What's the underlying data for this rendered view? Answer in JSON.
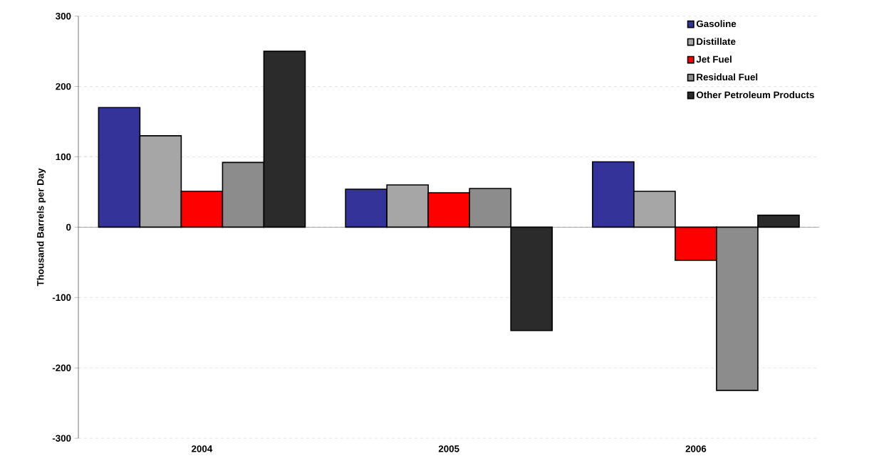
{
  "chart_data": {
    "type": "bar",
    "ylabel": "Thousand Barrels per Day",
    "categories": [
      "2004",
      "2005",
      "2006"
    ],
    "series": [
      {
        "name": "Gasoline",
        "color": "#333399",
        "values": [
          170,
          54,
          93
        ]
      },
      {
        "name": "Distillate",
        "color": "#a6a6a6",
        "values": [
          130,
          60,
          51
        ]
      },
      {
        "name": "Jet Fuel",
        "color": "#ff0000",
        "values": [
          51,
          49,
          -47
        ]
      },
      {
        "name": "Residual Fuel",
        "color": "#8c8c8c",
        "values": [
          92,
          55,
          -232
        ]
      },
      {
        "name": "Other Petroleum Products",
        "color": "#2b2b2b",
        "values": [
          250,
          -147,
          17
        ]
      }
    ],
    "ylim": [
      -300,
      300
    ],
    "yticks": [
      -300,
      -200,
      -100,
      0,
      100,
      200,
      300
    ],
    "grid": "y",
    "legend": "top right"
  }
}
